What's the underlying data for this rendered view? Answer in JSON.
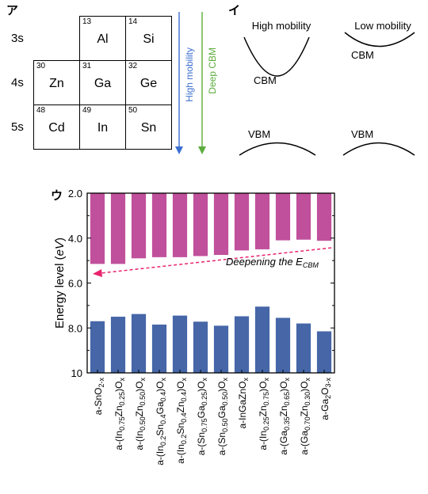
{
  "panels": {
    "a": {
      "label": "ア",
      "rows": [
        "3s",
        "4s",
        "5s"
      ],
      "cells": [
        {
          "num": "13",
          "sym": "Al",
          "row": 0,
          "col": 1
        },
        {
          "num": "14",
          "sym": "Si",
          "row": 0,
          "col": 2
        },
        {
          "num": "30",
          "sym": "Zn",
          "row": 1,
          "col": 0
        },
        {
          "num": "31",
          "sym": "Ga",
          "row": 1,
          "col": 1
        },
        {
          "num": "32",
          "sym": "Ge",
          "row": 1,
          "col": 2
        },
        {
          "num": "48",
          "sym": "Cd",
          "row": 2,
          "col": 0
        },
        {
          "num": "49",
          "sym": "In",
          "row": 2,
          "col": 1
        },
        {
          "num": "50",
          "sym": "Sn",
          "row": 2,
          "col": 2
        }
      ],
      "arrows": [
        {
          "label": "High mobility",
          "color": "#3d6fd0"
        },
        {
          "label": "Deep CBM",
          "color": "#5cac3c"
        }
      ]
    },
    "b": {
      "label": "イ",
      "high_title": "High mobility",
      "low_title": "Low mobility",
      "cbm": "CBM",
      "vbm": "VBM"
    },
    "c": {
      "label": "ウ",
      "annotation": "Deepening the E",
      "annotation_sub": "CBM",
      "magenta": "#c0509c",
      "blue": "#4666a8",
      "arrow_color": "#e8246e"
    }
  },
  "chart_data": {
    "type": "bar",
    "ylabel": "Energy level (eV)",
    "ylim": [
      2.0,
      10.0
    ],
    "yticks": [
      "2.0",
      "4.0",
      "6.0",
      "8.0",
      "10"
    ],
    "y_inverted": true,
    "categories": [
      {
        "pre": "a-SnO",
        "parts": [
          [
            "sub",
            "2-x"
          ]
        ]
      },
      {
        "pre": "a-(In",
        "parts": [
          [
            "sub",
            "0.75"
          ],
          [
            "t",
            "Zn"
          ],
          [
            "sub",
            "0.25"
          ],
          [
            "t",
            ")O"
          ],
          [
            "sub",
            "x"
          ]
        ]
      },
      {
        "pre": "a-(In",
        "parts": [
          [
            "sub",
            "0.50"
          ],
          [
            "t",
            "Zn"
          ],
          [
            "sub",
            "0.50"
          ],
          [
            "t",
            ")O"
          ],
          [
            "sub",
            "x"
          ]
        ]
      },
      {
        "pre": "a-(In",
        "parts": [
          [
            "sub",
            "0.2"
          ],
          [
            "t",
            "Sn"
          ],
          [
            "sub",
            "0.4"
          ],
          [
            "t",
            "Ga"
          ],
          [
            "sub",
            "0.4"
          ],
          [
            "t",
            ")O"
          ],
          [
            "sub",
            "x"
          ]
        ]
      },
      {
        "pre": "a-(In",
        "parts": [
          [
            "sub",
            "0.2"
          ],
          [
            "t",
            "Sn"
          ],
          [
            "sub",
            "0.4"
          ],
          [
            "t",
            "Zn"
          ],
          [
            "sub",
            "0.4"
          ],
          [
            "t",
            ")O"
          ],
          [
            "sub",
            "x"
          ]
        ]
      },
      {
        "pre": "a-(Sn",
        "parts": [
          [
            "sub",
            "0.75"
          ],
          [
            "t",
            "Ga"
          ],
          [
            "sub",
            "0.25"
          ],
          [
            "t",
            ")O"
          ],
          [
            "sub",
            "x"
          ]
        ]
      },
      {
        "pre": "a-(Sn",
        "parts": [
          [
            "sub",
            "0.50"
          ],
          [
            "t",
            "Ga"
          ],
          [
            "sub",
            "0.50"
          ],
          [
            "t",
            ")O"
          ],
          [
            "sub",
            "x"
          ]
        ]
      },
      {
        "pre": "a-InGaZnO",
        "parts": [
          [
            "sub",
            "x"
          ]
        ]
      },
      {
        "pre": "a-(In",
        "parts": [
          [
            "sub",
            "0.25"
          ],
          [
            "t",
            "Zn"
          ],
          [
            "sub",
            "0.75"
          ],
          [
            "t",
            ")O"
          ],
          [
            "sub",
            "x"
          ]
        ]
      },
      {
        "pre": "a-(Ga",
        "parts": [
          [
            "sub",
            "0.35"
          ],
          [
            "t",
            "Zn"
          ],
          [
            "sub",
            "0.65"
          ],
          [
            "t",
            ")O"
          ],
          [
            "sub",
            "x"
          ]
        ]
      },
      {
        "pre": "a-(Ga",
        "parts": [
          [
            "sub",
            "0.70"
          ],
          [
            "t",
            "Zn"
          ],
          [
            "sub",
            "0.30"
          ],
          [
            "t",
            ")O"
          ],
          [
            "sub",
            "x"
          ]
        ]
      },
      {
        "pre": "a-Ga",
        "parts": [
          [
            "sub",
            "2"
          ],
          [
            "t",
            "O"
          ],
          [
            "sub",
            "3-x"
          ]
        ]
      }
    ],
    "series": [
      {
        "values": [
          5.15,
          5.15,
          4.9,
          4.85,
          4.85,
          4.8,
          4.75,
          4.55,
          4.5,
          4.1,
          4.07,
          4.12
        ]
      },
      {
        "values": [
          7.7,
          7.5,
          7.38,
          7.85,
          7.45,
          7.72,
          7.9,
          7.48,
          7.05,
          7.55,
          7.8,
          8.15
        ]
      }
    ]
  }
}
